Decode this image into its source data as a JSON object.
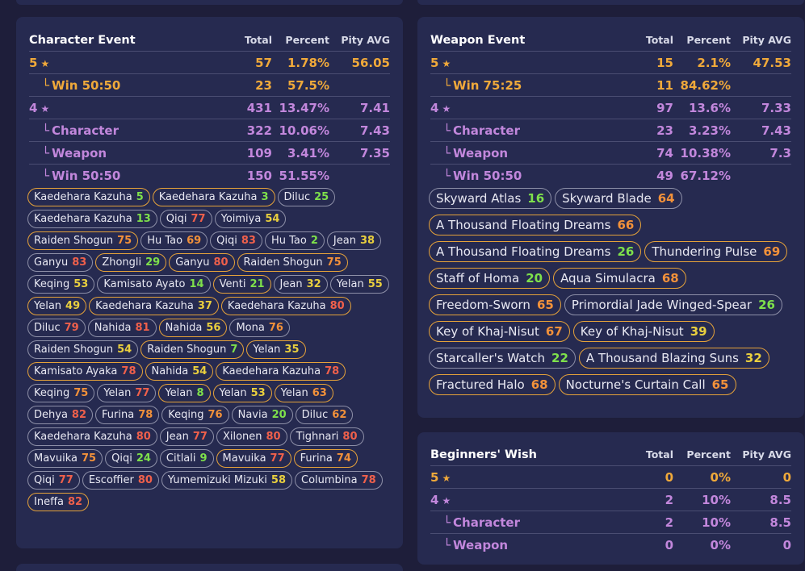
{
  "character_event": {
    "title": "Character Event",
    "headers": {
      "total": "Total",
      "percent": "Percent",
      "pity": "Pity AVG"
    },
    "rows": [
      {
        "label": "5",
        "star": "★",
        "total": "57",
        "percent": "1.78%",
        "pity": "56.05",
        "tone": "gold",
        "sub": false
      },
      {
        "label": "Win 50:50",
        "star": "",
        "total": "23",
        "percent": "57.5%",
        "pity": "",
        "tone": "gold",
        "sub": true
      },
      {
        "label": "4",
        "star": "★",
        "total": "431",
        "percent": "13.47%",
        "pity": "7.41",
        "tone": "purple",
        "sub": false
      },
      {
        "label": "Character",
        "star": "",
        "total": "322",
        "percent": "10.06%",
        "pity": "7.43",
        "tone": "purple",
        "sub": true
      },
      {
        "label": "Weapon",
        "star": "",
        "total": "109",
        "percent": "3.41%",
        "pity": "7.35",
        "tone": "purple",
        "sub": true
      },
      {
        "label": "Win 50:50",
        "star": "",
        "total": "150",
        "percent": "51.55%",
        "pity": "",
        "tone": "purple",
        "sub": true
      }
    ],
    "pulls": [
      {
        "name": "Kaedehara Kazuha",
        "pity": "5",
        "color": "green",
        "border": "gold"
      },
      {
        "name": "Kaedehara Kazuha",
        "pity": "3",
        "color": "green",
        "border": "gold"
      },
      {
        "name": "Diluc",
        "pity": "25",
        "color": "green",
        "border": "gray"
      },
      {
        "name": "Kaedehara Kazuha",
        "pity": "13",
        "color": "green",
        "border": "gray"
      },
      {
        "name": "Qiqi",
        "pity": "77",
        "color": "red",
        "border": "gray"
      },
      {
        "name": "Yoimiya",
        "pity": "54",
        "color": "yellow",
        "border": "gray"
      },
      {
        "name": "Raiden Shogun",
        "pity": "75",
        "color": "orange",
        "border": "gold"
      },
      {
        "name": "Hu Tao",
        "pity": "69",
        "color": "orange",
        "border": "gray"
      },
      {
        "name": "Qiqi",
        "pity": "83",
        "color": "red",
        "border": "gray"
      },
      {
        "name": "Hu Tao",
        "pity": "2",
        "color": "green",
        "border": "gray"
      },
      {
        "name": "Jean",
        "pity": "38",
        "color": "yellow",
        "border": "gray"
      },
      {
        "name": "Ganyu",
        "pity": "83",
        "color": "red",
        "border": "gray"
      },
      {
        "name": "Zhongli",
        "pity": "29",
        "color": "green",
        "border": "gold"
      },
      {
        "name": "Ganyu",
        "pity": "80",
        "color": "red",
        "border": "gold"
      },
      {
        "name": "Raiden Shogun",
        "pity": "75",
        "color": "orange",
        "border": "gold"
      },
      {
        "name": "Keqing",
        "pity": "53",
        "color": "yellow",
        "border": "gray"
      },
      {
        "name": "Kamisato Ayato",
        "pity": "14",
        "color": "green",
        "border": "gray"
      },
      {
        "name": "Venti",
        "pity": "21",
        "color": "green",
        "border": "gold"
      },
      {
        "name": "Jean",
        "pity": "32",
        "color": "yellow",
        "border": "gray"
      },
      {
        "name": "Yelan",
        "pity": "55",
        "color": "yellow",
        "border": "gray"
      },
      {
        "name": "Yelan",
        "pity": "49",
        "color": "yellow",
        "border": "gold"
      },
      {
        "name": "Kaedehara Kazuha",
        "pity": "37",
        "color": "yellow",
        "border": "gold"
      },
      {
        "name": "Kaedehara Kazuha",
        "pity": "80",
        "color": "red",
        "border": "gold"
      },
      {
        "name": "Diluc",
        "pity": "79",
        "color": "red",
        "border": "gray"
      },
      {
        "name": "Nahida",
        "pity": "81",
        "color": "red",
        "border": "gray"
      },
      {
        "name": "Nahida",
        "pity": "56",
        "color": "yellow",
        "border": "gold"
      },
      {
        "name": "Mona",
        "pity": "76",
        "color": "orange",
        "border": "gray"
      },
      {
        "name": "Raiden Shogun",
        "pity": "54",
        "color": "yellow",
        "border": "gray"
      },
      {
        "name": "Raiden Shogun",
        "pity": "7",
        "color": "green",
        "border": "gold"
      },
      {
        "name": "Yelan",
        "pity": "35",
        "color": "yellow",
        "border": "gold"
      },
      {
        "name": "Kamisato Ayaka",
        "pity": "78",
        "color": "red",
        "border": "gold"
      },
      {
        "name": "Nahida",
        "pity": "54",
        "color": "yellow",
        "border": "gold"
      },
      {
        "name": "Kaedehara Kazuha",
        "pity": "78",
        "color": "red",
        "border": "gold"
      },
      {
        "name": "Keqing",
        "pity": "75",
        "color": "orange",
        "border": "gray"
      },
      {
        "name": "Yelan",
        "pity": "77",
        "color": "red",
        "border": "gray"
      },
      {
        "name": "Yelan",
        "pity": "8",
        "color": "green",
        "border": "gold"
      },
      {
        "name": "Yelan",
        "pity": "53",
        "color": "yellow",
        "border": "gold"
      },
      {
        "name": "Yelan",
        "pity": "63",
        "color": "orange",
        "border": "gold"
      },
      {
        "name": "Dehya",
        "pity": "82",
        "color": "red",
        "border": "gray"
      },
      {
        "name": "Furina",
        "pity": "78",
        "color": "orange",
        "border": "gray"
      },
      {
        "name": "Keqing",
        "pity": "76",
        "color": "orange",
        "border": "gray"
      },
      {
        "name": "Navia",
        "pity": "20",
        "color": "green",
        "border": "gray"
      },
      {
        "name": "Diluc",
        "pity": "62",
        "color": "orange",
        "border": "gray"
      },
      {
        "name": "Kaedehara Kazuha",
        "pity": "80",
        "color": "red",
        "border": "gray"
      },
      {
        "name": "Jean",
        "pity": "77",
        "color": "red",
        "border": "gray"
      },
      {
        "name": "Xilonen",
        "pity": "80",
        "color": "red",
        "border": "gray"
      },
      {
        "name": "Tighnari",
        "pity": "80",
        "color": "red",
        "border": "gray"
      },
      {
        "name": "Mavuika",
        "pity": "75",
        "color": "orange",
        "border": "gray"
      },
      {
        "name": "Qiqi",
        "pity": "24",
        "color": "green",
        "border": "gray"
      },
      {
        "name": "Citlali",
        "pity": "9",
        "color": "green",
        "border": "gray"
      },
      {
        "name": "Mavuika",
        "pity": "77",
        "color": "red",
        "border": "gold"
      },
      {
        "name": "Furina",
        "pity": "74",
        "color": "orange",
        "border": "gold"
      },
      {
        "name": "Qiqi",
        "pity": "77",
        "color": "red",
        "border": "gray"
      },
      {
        "name": "Escoffier",
        "pity": "80",
        "color": "red",
        "border": "gray"
      },
      {
        "name": "Yumemizuki Mizuki",
        "pity": "58",
        "color": "yellow",
        "border": "gray"
      },
      {
        "name": "Columbina",
        "pity": "78",
        "color": "red",
        "border": "gray"
      },
      {
        "name": "Ineffa",
        "pity": "82",
        "color": "red",
        "border": "gold"
      }
    ]
  },
  "weapon_event": {
    "title": "Weapon Event",
    "headers": {
      "total": "Total",
      "percent": "Percent",
      "pity": "Pity AVG"
    },
    "rows": [
      {
        "label": "5",
        "star": "★",
        "total": "15",
        "percent": "2.1%",
        "pity": "47.53",
        "tone": "gold",
        "sub": false
      },
      {
        "label": "Win 75:25",
        "star": "",
        "total": "11",
        "percent": "84.62%",
        "pity": "",
        "tone": "gold",
        "sub": true
      },
      {
        "label": "4",
        "star": "★",
        "total": "97",
        "percent": "13.6%",
        "pity": "7.33",
        "tone": "purple",
        "sub": false
      },
      {
        "label": "Character",
        "star": "",
        "total": "23",
        "percent": "3.23%",
        "pity": "7.43",
        "tone": "purple",
        "sub": true
      },
      {
        "label": "Weapon",
        "star": "",
        "total": "74",
        "percent": "10.38%",
        "pity": "7.3",
        "tone": "purple",
        "sub": true
      },
      {
        "label": "Win 50:50",
        "star": "",
        "total": "49",
        "percent": "67.12%",
        "pity": "",
        "tone": "purple",
        "sub": true
      }
    ],
    "pulls": [
      {
        "name": "Skyward Atlas",
        "pity": "16",
        "color": "green",
        "border": "gray"
      },
      {
        "name": "Skyward Blade",
        "pity": "64",
        "color": "orange",
        "border": "gray"
      },
      {
        "name": "A Thousand Floating Dreams",
        "pity": "66",
        "color": "orange",
        "border": "gold"
      },
      {
        "name": "A Thousand Floating Dreams",
        "pity": "26",
        "color": "green",
        "border": "gold"
      },
      {
        "name": "Thundering Pulse",
        "pity": "69",
        "color": "orange",
        "border": "gold"
      },
      {
        "name": "Staff of Homa",
        "pity": "20",
        "color": "green",
        "border": "gold"
      },
      {
        "name": "Aqua Simulacra",
        "pity": "68",
        "color": "orange",
        "border": "gold"
      },
      {
        "name": "Freedom-Sworn",
        "pity": "65",
        "color": "orange",
        "border": "gold"
      },
      {
        "name": "Primordial Jade Winged-Spear",
        "pity": "26",
        "color": "green",
        "border": "gray"
      },
      {
        "name": "Key of Khaj-Nisut",
        "pity": "67",
        "color": "orange",
        "border": "gold"
      },
      {
        "name": "Key of Khaj-Nisut",
        "pity": "39",
        "color": "yellow",
        "border": "gold"
      },
      {
        "name": "Starcaller's Watch",
        "pity": "22",
        "color": "green",
        "border": "gray"
      },
      {
        "name": "A Thousand Blazing Suns",
        "pity": "32",
        "color": "yellow",
        "border": "gold"
      },
      {
        "name": "Fractured Halo",
        "pity": "68",
        "color": "orange",
        "border": "gold"
      },
      {
        "name": "Nocturne's Curtain Call",
        "pity": "65",
        "color": "orange",
        "border": "gold"
      }
    ]
  },
  "beginners_wish": {
    "title": "Beginners' Wish",
    "headers": {
      "total": "Total",
      "percent": "Percent",
      "pity": "Pity AVG"
    },
    "rows": [
      {
        "label": "5",
        "star": "★",
        "total": "0",
        "percent": "0%",
        "pity": "0",
        "tone": "gold",
        "sub": false
      },
      {
        "label": "4",
        "star": "★",
        "total": "2",
        "percent": "10%",
        "pity": "8.5",
        "tone": "purple",
        "sub": false
      },
      {
        "label": "Character",
        "star": "",
        "total": "2",
        "percent": "10%",
        "pity": "8.5",
        "tone": "purple",
        "sub": true
      },
      {
        "label": "Weapon",
        "star": "",
        "total": "0",
        "percent": "0%",
        "pity": "0",
        "tone": "purple",
        "sub": true
      }
    ]
  },
  "sub_marker": "└"
}
